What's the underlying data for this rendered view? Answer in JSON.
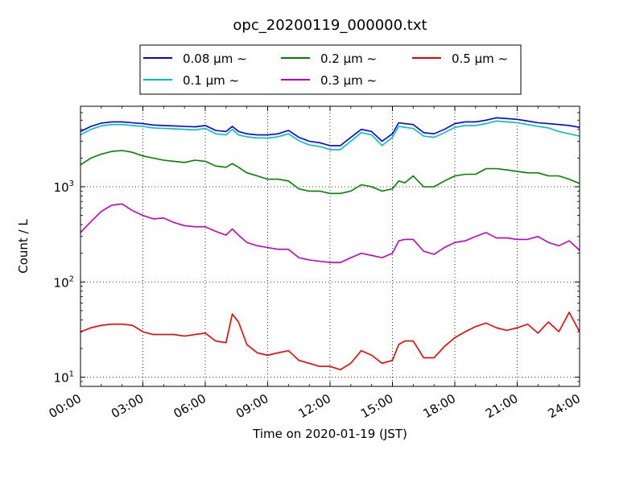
{
  "chart_data": {
    "type": "line",
    "title": "opc_20200119_000000.txt",
    "xlabel": "Time on 2020-01-19 (JST)",
    "ylabel": "Count / L",
    "y_scale": "log",
    "xlim": [
      0,
      24
    ],
    "ylim": [
      8,
      7000
    ],
    "grid": true,
    "legend_position": "top-center",
    "x_ticks": [
      0,
      3,
      6,
      9,
      12,
      15,
      18,
      21,
      24
    ],
    "x_tick_labels": [
      "00:00",
      "03:00",
      "06:00",
      "09:00",
      "12:00",
      "15:00",
      "18:00",
      "21:00",
      "24:00"
    ],
    "y_ticks": [
      10,
      100,
      1000
    ],
    "y_tick_bases": [
      "10",
      "10",
      "10"
    ],
    "y_tick_exponents": [
      "1",
      "2",
      "3"
    ],
    "x": [
      0,
      0.5,
      1,
      1.5,
      2,
      2.5,
      3,
      3.5,
      4,
      4.5,
      5,
      5.5,
      6,
      6.5,
      7,
      7.3,
      7.6,
      8,
      8.5,
      9,
      9.5,
      10,
      10.5,
      11,
      11.5,
      12,
      12.5,
      13,
      13.5,
      14,
      14.5,
      15,
      15.3,
      15.6,
      16,
      16.5,
      17,
      17.5,
      18,
      18.5,
      19,
      19.5,
      20,
      20.5,
      21,
      21.5,
      22,
      22.5,
      23,
      23.5,
      24
    ],
    "series": [
      {
        "name": "0.08 μm ~",
        "color": "#0000ee",
        "values": [
          3800,
          4300,
          4650,
          4800,
          4800,
          4700,
          4600,
          4450,
          4400,
          4350,
          4300,
          4250,
          4400,
          3900,
          3800,
          4300,
          3800,
          3600,
          3500,
          3500,
          3600,
          3900,
          3300,
          3000,
          2900,
          2700,
          2700,
          3300,
          4000,
          3800,
          3000,
          3600,
          4700,
          4600,
          4500,
          3700,
          3600,
          4000,
          4600,
          4800,
          4800,
          5000,
          5300,
          5200,
          5100,
          4900,
          4700,
          4600,
          4500,
          4400,
          4200
        ]
      },
      {
        "name": "0.1 μm ~",
        "color": "#00bfbf",
        "values": [
          3500,
          4000,
          4350,
          4500,
          4500,
          4400,
          4300,
          4150,
          4100,
          4050,
          4000,
          3950,
          4100,
          3600,
          3500,
          4000,
          3500,
          3350,
          3250,
          3250,
          3350,
          3600,
          3050,
          2750,
          2650,
          2450,
          2450,
          3000,
          3700,
          3500,
          2700,
          3300,
          4300,
          4200,
          4100,
          3400,
          3300,
          3700,
          4200,
          4400,
          4400,
          4600,
          4900,
          4800,
          4700,
          4500,
          4300,
          4150,
          3800,
          3600,
          3400
        ]
      },
      {
        "name": "0.2 μm ~",
        "color": "#008000",
        "values": [
          1700,
          2000,
          2200,
          2350,
          2400,
          2300,
          2100,
          2000,
          1900,
          1850,
          1800,
          1900,
          1850,
          1650,
          1600,
          1750,
          1600,
          1400,
          1300,
          1200,
          1200,
          1150,
          950,
          900,
          900,
          850,
          850,
          900,
          1050,
          1000,
          900,
          950,
          1150,
          1100,
          1300,
          1000,
          1000,
          1150,
          1300,
          1350,
          1350,
          1550,
          1550,
          1500,
          1450,
          1400,
          1400,
          1300,
          1300,
          1200,
          1080
        ]
      },
      {
        "name": "0.3 μm ~",
        "color": "#bf00bf",
        "values": [
          330,
          430,
          550,
          640,
          660,
          560,
          500,
          460,
          470,
          420,
          390,
          380,
          380,
          340,
          310,
          360,
          310,
          260,
          240,
          230,
          220,
          220,
          180,
          170,
          165,
          160,
          160,
          180,
          200,
          190,
          180,
          200,
          270,
          280,
          280,
          210,
          195,
          230,
          260,
          270,
          300,
          330,
          290,
          290,
          280,
          280,
          300,
          260,
          240,
          270,
          215
        ]
      },
      {
        "name": "0.5 μm ~",
        "color": "#ee0000",
        "values": [
          30,
          33,
          35,
          36,
          36,
          35,
          30,
          28,
          28,
          28,
          27,
          28,
          29,
          24,
          23,
          46,
          38,
          22,
          18,
          17,
          18,
          19,
          15,
          14,
          13,
          13,
          12,
          14,
          19,
          17,
          14,
          15,
          22,
          24,
          24,
          16,
          16,
          21,
          26,
          30,
          34,
          37,
          33,
          31,
          33,
          36,
          29,
          38,
          30,
          48,
          30
        ]
      }
    ]
  }
}
